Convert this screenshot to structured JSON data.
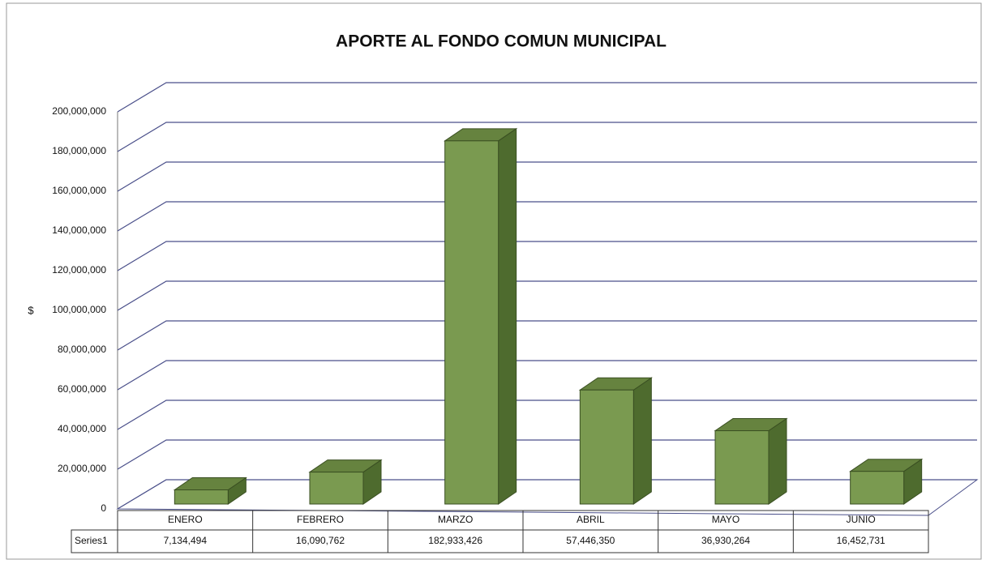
{
  "chart_data": {
    "type": "bar3d",
    "title": "APORTE AL FONDO COMUN MUNICIPAL",
    "y_label": "$",
    "categories": [
      "ENERO",
      "FEBRERO",
      "MARZO",
      "ABRIL",
      "MAYO",
      "JUNIO"
    ],
    "series": [
      {
        "name": "Series1",
        "color": "#7a9a50",
        "values": [
          7134494,
          16090762,
          182933426,
          57446350,
          36930264,
          16452731
        ],
        "value_labels": [
          "7,134,494",
          "16,090,762",
          "182,933,426",
          "57,446,350",
          "36,930,264",
          "16,452,731"
        ]
      }
    ],
    "ylim": [
      0,
      200000000
    ],
    "yticks": [
      {
        "value": 0,
        "label": "0"
      },
      {
        "value": 20000000,
        "label": "20,000,000"
      },
      {
        "value": 40000000,
        "label": "40,000,000"
      },
      {
        "value": 60000000,
        "label": "60,000,000"
      },
      {
        "value": 80000000,
        "label": "80,000,000"
      },
      {
        "value": 100000000,
        "label": "100,000,000"
      },
      {
        "value": 120000000,
        "label": "120,000,000"
      },
      {
        "value": 140000000,
        "label": "140,000,000"
      },
      {
        "value": 160000000,
        "label": "160,000,000"
      },
      {
        "value": 180000000,
        "label": "180,000,000"
      },
      {
        "value": 200000000,
        "label": "200,000,000"
      }
    ],
    "grid": true
  }
}
